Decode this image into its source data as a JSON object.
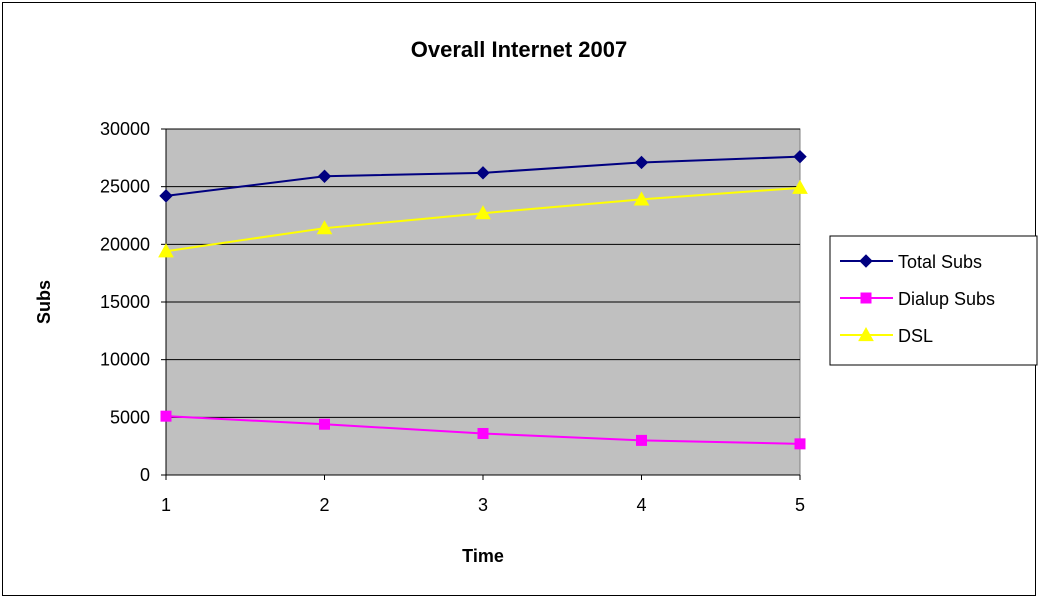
{
  "chart_data": {
    "type": "line",
    "title": "Overall Internet 2007",
    "xlabel": "Time",
    "ylabel": "Subs",
    "x": [
      1,
      2,
      3,
      4,
      5
    ],
    "x_tick_labels": [
      "1",
      "2",
      "3",
      "4",
      "5"
    ],
    "ylim": [
      0,
      30000
    ],
    "y_tick_labels": [
      "0",
      "5000",
      "10000",
      "15000",
      "20000",
      "25000",
      "30000"
    ],
    "y_ticks": [
      0,
      5000,
      10000,
      15000,
      20000,
      25000,
      30000
    ],
    "grid": "horizontal",
    "plot_background": "#c0c0c0",
    "legend_position": "right",
    "series": [
      {
        "name": "Total Subs",
        "values": [
          24200,
          25900,
          26200,
          27100,
          27600
        ],
        "color": "#000080",
        "marker": "diamond"
      },
      {
        "name": "Dialup Subs",
        "values": [
          5100,
          4400,
          3600,
          3000,
          2700
        ],
        "color": "#ff00ff",
        "marker": "square"
      },
      {
        "name": "DSL",
        "values": [
          19400,
          21400,
          22700,
          23900,
          24900
        ],
        "color": "#ffff00",
        "marker": "triangle"
      }
    ]
  }
}
